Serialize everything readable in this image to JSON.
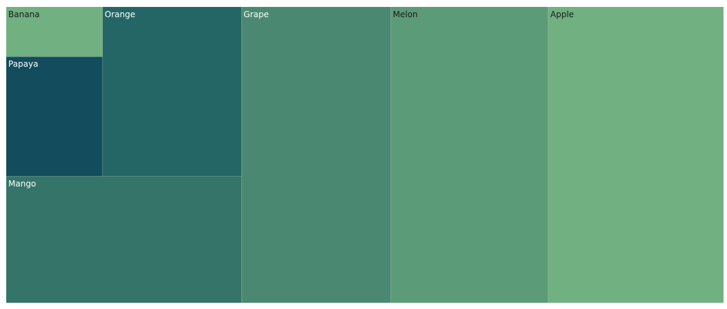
{
  "chart_data": {
    "type": "treemap",
    "title": "",
    "items": [
      {
        "name": "Banana",
        "value": 10,
        "color": "#71b081",
        "label_color": "#1b1b1b"
      },
      {
        "name": "Papaya",
        "value": 24,
        "color": "#124c5d",
        "label_color": "#ffffff"
      },
      {
        "name": "Orange",
        "value": 49,
        "color": "#246665",
        "label_color": "#ffffff"
      },
      {
        "name": "Mango",
        "value": 62,
        "color": "#347469",
        "label_color": "#ffffff"
      },
      {
        "name": "Grape",
        "value": 92,
        "color": "#4a8871",
        "label_color": "#ffffff"
      },
      {
        "name": "Melon",
        "value": 97,
        "color": "#5b9b77",
        "label_color": "#1b1b1b"
      },
      {
        "name": "Apple",
        "value": 108,
        "color": "#71b081",
        "label_color": "#1b1b1b"
      }
    ]
  }
}
